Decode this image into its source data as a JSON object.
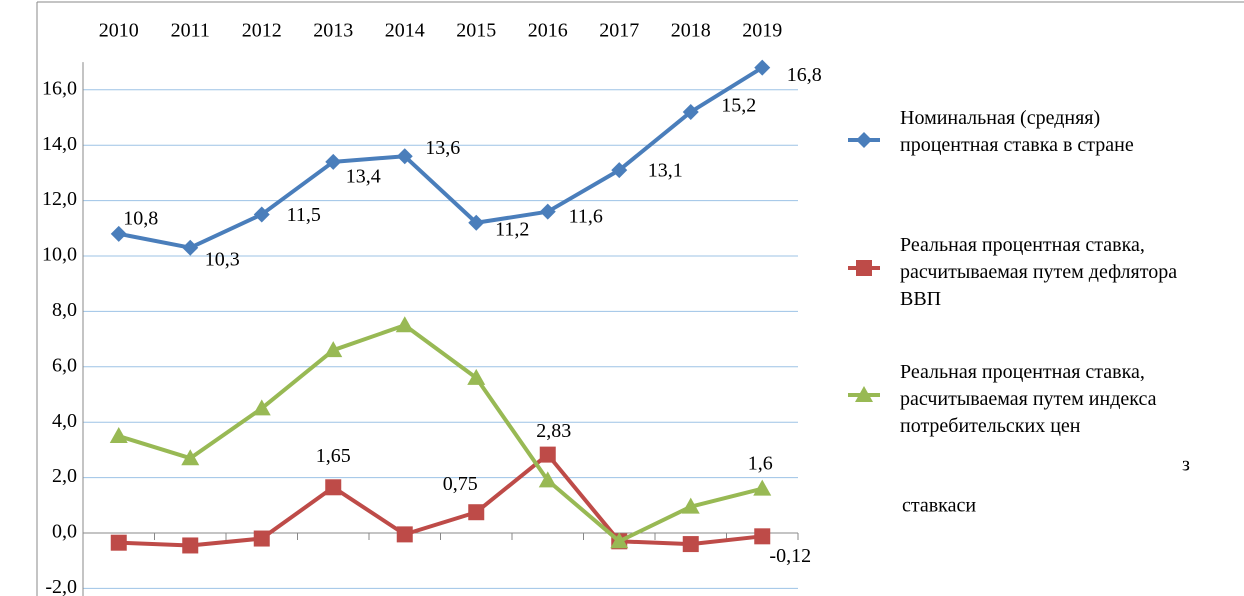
{
  "chart_data": {
    "type": "line",
    "categories": [
      "2010",
      "2011",
      "2012",
      "2013",
      "2014",
      "2015",
      "2016",
      "2017",
      "2018",
      "2019"
    ],
    "ylim": [
      -2,
      17
    ],
    "yticks": [
      {
        "value": -2,
        "label": "-2,0"
      },
      {
        "value": 0,
        "label": "0,0"
      },
      {
        "value": 2,
        "label": "2,0"
      },
      {
        "value": 4,
        "label": "4,0"
      },
      {
        "value": 6,
        "label": "6,0"
      },
      {
        "value": 8,
        "label": "8,0"
      },
      {
        "value": 10,
        "label": "10,0"
      },
      {
        "value": 12,
        "label": "12,0"
      },
      {
        "value": 14,
        "label": "14,0"
      },
      {
        "value": 16,
        "label": "16,0"
      }
    ],
    "grid": true,
    "series": [
      {
        "name": "Номинальная (средняя) процентная ставка в стране",
        "color": "#4a7ebb",
        "marker": "diamond",
        "values": [
          10.8,
          10.3,
          11.5,
          13.4,
          13.6,
          11.2,
          11.6,
          13.1,
          15.2,
          16.8
        ],
        "value_labels": [
          "10,8",
          "10,3",
          "11,5",
          "13,4",
          "13,6",
          "11,2",
          "11,6",
          "13,1",
          "15,2",
          "16,8"
        ]
      },
      {
        "name": "Реальная процентная ставка, расчитываемая путем дефлятора ВВП",
        "color": "#be4b48",
        "marker": "square",
        "values": [
          -0.35,
          -0.45,
          -0.2,
          1.65,
          -0.05,
          0.75,
          2.83,
          -0.3,
          -0.4,
          -0.12
        ],
        "value_labels": [
          null,
          null,
          null,
          "1,65",
          null,
          "0,75",
          "2,83",
          null,
          null,
          "-0,12"
        ]
      },
      {
        "name": "Реальная процентная ставка, расчитываемая путем индекса потребительских цен",
        "color": "#98b954",
        "marker": "triangle",
        "values": [
          3.5,
          2.7,
          4.5,
          6.6,
          7.5,
          5.6,
          1.9,
          -0.3,
          0.95,
          1.6
        ],
        "value_labels": [
          null,
          null,
          null,
          null,
          null,
          null,
          null,
          null,
          null,
          "1,6"
        ]
      }
    ],
    "annotations": [
      "з",
      "ставкаси"
    ]
  }
}
